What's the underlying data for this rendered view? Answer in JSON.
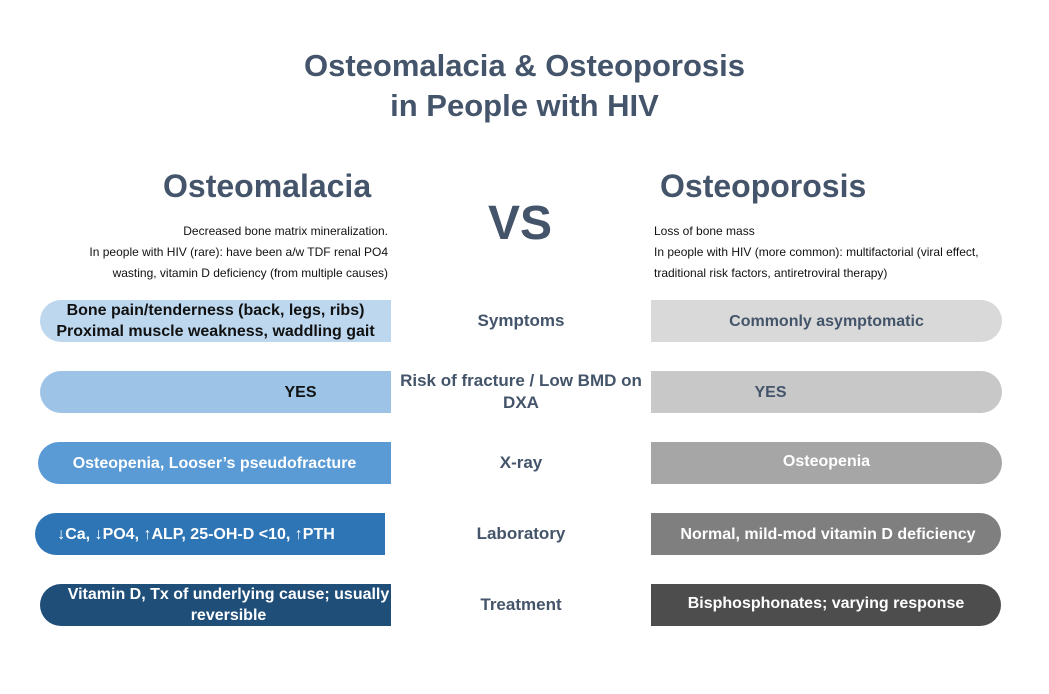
{
  "title": {
    "line1": "Osteomalacia & Osteoporosis",
    "line2": "in People with HIV"
  },
  "vs_label": "VS",
  "left": {
    "heading": "Osteomalacia",
    "desc_line1": "Decreased bone matrix mineralization.",
    "desc_line2": "In people with HIV (rare): have been a/w TDF renal PO4 wasting, vitamin D deficiency (from multiple causes)"
  },
  "right": {
    "heading": "Osteoporosis",
    "desc_line1": "Loss of bone mass",
    "desc_line2": "In people with HIV (more common): multifactorial (viral effect, traditional risk factors, antiretroviral therapy)"
  },
  "rows": [
    {
      "category": "Symptoms",
      "left": "Bone pain/tenderness (back, legs, ribs) Proximal muscle weakness, waddling gait",
      "right": "Commonly asymptomatic",
      "left_color": "#bdd7ee",
      "right_color": "#d9d9d9"
    },
    {
      "category": "Risk of fracture / Low BMD on DXA",
      "left": "YES",
      "right": "YES",
      "left_color": "#9dc3e6",
      "right_color": "#c8c8c8"
    },
    {
      "category": "X-ray",
      "left": "Osteopenia, Looser’s pseudofracture",
      "right": "Osteopenia",
      "left_color": "#5b9bd5",
      "right_color": "#a6a6a6"
    },
    {
      "category": "Laboratory",
      "left": "↓Ca, ↓PO4, ↑ALP, 25-OH-D <10, ↑PTH",
      "right": "Normal, mild-mod vitamin D deficiency",
      "left_color": "#2e75b6",
      "right_color": "#7f7f7f"
    },
    {
      "category": "Treatment",
      "left": "Vitamin D, Tx of underlying cause; usually reversible",
      "right": "Bisphosphonates; varying response",
      "left_color": "#1f4e79",
      "right_color": "#4d4d4d"
    }
  ]
}
